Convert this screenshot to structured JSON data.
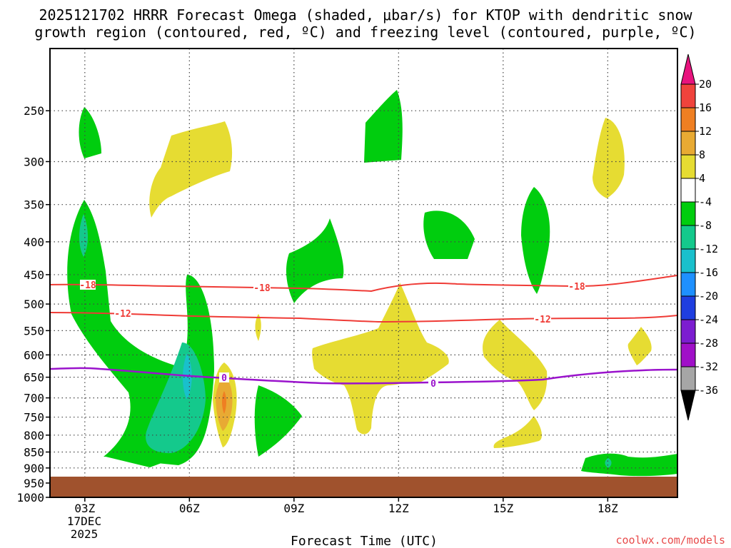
{
  "chart_data": {
    "type": "time-height contour",
    "title_line1": "2025121702 HRRR Forecast Omega (shaded, μbar/s) for KTOP with dendritic snow",
    "title_line2": "growth region (contoured, red, ºC) and freezing level (contoured, purple, ºC)",
    "xlabel": "Forecast Time (UTC)",
    "watermark": "coolwx.com/models",
    "y_ticks": [
      250,
      300,
      350,
      400,
      450,
      500,
      550,
      600,
      650,
      700,
      750,
      800,
      850,
      900,
      950,
      1000
    ],
    "y_range_hpa": [
      200,
      1000
    ],
    "x_ticks": [
      {
        "hour": 3,
        "label": "03Z"
      },
      {
        "hour": 6,
        "label": "06Z"
      },
      {
        "hour": 9,
        "label": "09Z"
      },
      {
        "hour": 12,
        "label": "12Z"
      },
      {
        "hour": 15,
        "label": "15Z"
      },
      {
        "hour": 18,
        "label": "18Z"
      }
    ],
    "x_range_hours": [
      2,
      20
    ],
    "date_label_1": "17DEC",
    "date_label_2": "2025",
    "surface_pressure_hpa": 970,
    "colorbar": {
      "levels": [
        "20",
        "16",
        "12",
        "8",
        "4",
        "-4",
        "-8",
        "-12",
        "-16",
        "-20",
        "-24",
        "-28",
        "-32",
        "-36"
      ],
      "colors": {
        "top_arrow": "#e8137e",
        "c16_20": "#f0433c",
        "c12_16": "#ef7f22",
        "c8_12": "#e8aa33",
        "c4_8": "#e6dc32",
        "cm4_4": "#ffffff",
        "cm8_m4": "#00cd0e",
        "cm12_m8": "#14c98c",
        "cm16_m12": "#19c0cc",
        "cm20_m16": "#1e90ff",
        "cm24_m20": "#1f3ee0",
        "cm28_m24": "#7c1dd0",
        "cm32_m28": "#a010c8",
        "cm36_m32": "#a6a6a6",
        "bottom_arrow": "#000000"
      }
    },
    "snow_growth_contours": [
      {
        "label": "-18",
        "color": "#ef3b36"
      },
      {
        "label": "-12",
        "color": "#ef3b36"
      }
    ],
    "freezing_level": {
      "label": "0",
      "color": "#9a13cc"
    },
    "ground_color": "#a0522d"
  }
}
